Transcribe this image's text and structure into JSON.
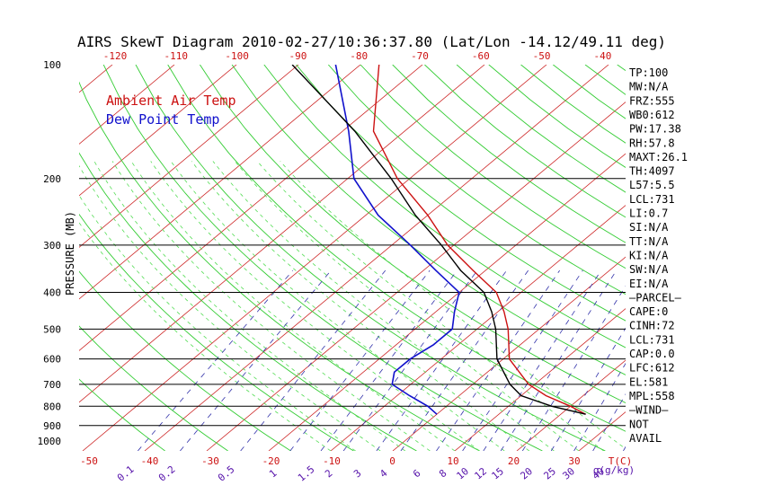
{
  "title": "AIRS SkewT Diagram 2010-02-27/10:36:37.80 (Lat/Lon -14.12/49.11 deg)",
  "colors": {
    "ambient": "#cc1111",
    "dewpoint": "#1111cc",
    "parcel": "#000000",
    "isotherm": "#cc2222",
    "dry_adiabat": "#33cc33",
    "moist_adiabat": "#55dd55",
    "mixing_ratio": "#3333aa",
    "isobar": "#000000",
    "bottom_temp_label": "#cc1111",
    "mixing_label": "#5511aa"
  },
  "chart_data": {
    "type": "line",
    "title": "AIRS SkewT Diagram 2010-02-27/10:36:37.80 (Lat/Lon -14.12/49.11 deg)",
    "ylabel": "PRESSURE (MB)",
    "pressure_axis": {
      "scale": "log",
      "range": [
        100,
        1050
      ],
      "labeled_levels": [
        100,
        200,
        300,
        400,
        500,
        600,
        700,
        800,
        900,
        1000
      ],
      "isobar_lines": [
        200,
        300,
        400,
        500,
        600,
        700,
        800,
        900
      ]
    },
    "top_temp_labels": [
      -120,
      -110,
      -100,
      -90,
      -80,
      -70,
      -60,
      -50,
      -40
    ],
    "bottom_temp_labels": [
      -50,
      -40,
      -30,
      -20,
      -10,
      0,
      10,
      20,
      30
    ],
    "bottom_temp_unit": "T(C)",
    "mixing_ratio_labels": [
      "0.1",
      "0.2",
      "0.5",
      "1",
      "1.5",
      "2",
      "3",
      "4",
      "6",
      "8",
      "10",
      "12",
      "15",
      "20",
      "25",
      "30",
      "40"
    ],
    "mixing_ratio_unit": "g(g/kg)",
    "legend": [
      {
        "label": "Ambient Air Temp",
        "color": "#cc1111"
      },
      {
        "label": "Dew Point Temp",
        "color": "#1111cc"
      }
    ],
    "series": [
      {
        "name": "Ambient Air Temp",
        "color": "#cc1111",
        "pressure": [
          100,
          150,
          200,
          250,
          300,
          350,
          400,
          450,
          500,
          600,
          700,
          750,
          800,
          840
        ],
        "temperature": [
          -77,
          -65,
          -52,
          -40,
          -31,
          -22,
          -14,
          -9,
          -5,
          1,
          9,
          14,
          20,
          24
        ]
      },
      {
        "name": "Dew Point Temp",
        "color": "#1111cc",
        "pressure": [
          100,
          150,
          200,
          250,
          300,
          350,
          400,
          450,
          500,
          550,
          600,
          650,
          700,
          750,
          800,
          840
        ],
        "temperature": [
          -84,
          -69,
          -59,
          -48,
          -37,
          -28,
          -20,
          -17,
          -14,
          -14,
          -15,
          -15,
          -13,
          -8,
          -3,
          0
        ]
      },
      {
        "name": "",
        "color": "#000000",
        "pressure": [
          100,
          150,
          200,
          250,
          300,
          350,
          400,
          450,
          500,
          600,
          700,
          750,
          800,
          840
        ],
        "temperature": [
          -91,
          -68,
          -53,
          -42,
          -32,
          -24,
          -16,
          -11,
          -7,
          -1,
          6,
          10,
          17,
          24
        ]
      }
    ],
    "side_labels": [
      "TP:100",
      "MW:N/A",
      "FRZ:555",
      "WB0:612",
      "PW:17.38",
      "RH:57.8",
      "MAXT:26.1",
      "TH:4097",
      "L57:5.5",
      "LCL:731",
      "LI:0.7",
      "SI:N/A",
      "TT:N/A",
      "KI:N/A",
      "SW:N/A",
      "EI:N/A",
      "–PARCEL–",
      "CAPE:0",
      "CINH:72",
      "LCL:731",
      "CAP:0.0",
      "LFC:612",
      "EL:581",
      "MPL:558",
      "–WIND–",
      "NOT",
      "AVAIL"
    ]
  }
}
